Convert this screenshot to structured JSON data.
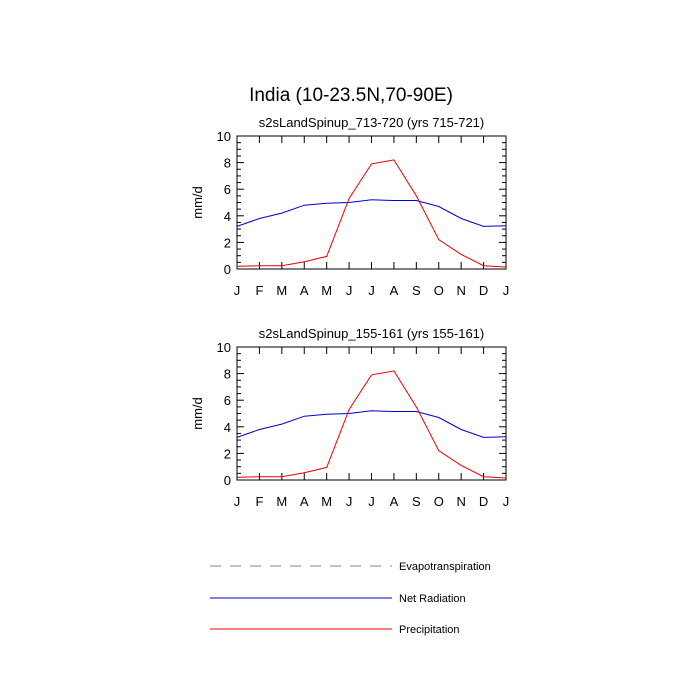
{
  "title": "India (10-23.5N,70-90E)",
  "colors": {
    "evapotranspiration": "#a0a0a0",
    "net_radiation": "#0000d0",
    "precipitation": "#ee0000",
    "axis": "#000000"
  },
  "chart_data": [
    {
      "type": "line",
      "title": "s2sLandSpinup_713-720 (yrs 715-721)",
      "xlabel": "",
      "ylabel": "mm/d",
      "ylim": [
        0,
        10
      ],
      "yticks": [
        0,
        2,
        4,
        6,
        8,
        10
      ],
      "categories": [
        "J",
        "F",
        "M",
        "A",
        "M",
        "J",
        "J",
        "A",
        "S",
        "O",
        "N",
        "D",
        "J"
      ],
      "series": [
        {
          "name": "Net Radiation",
          "values": [
            3.2,
            3.8,
            4.2,
            4.8,
            4.95,
            5.0,
            5.2,
            5.15,
            5.15,
            4.7,
            3.8,
            3.2,
            3.25
          ]
        },
        {
          "name": "Precipitation",
          "values": [
            0.2,
            0.25,
            0.25,
            0.55,
            0.95,
            5.3,
            7.9,
            8.2,
            5.5,
            2.2,
            1.1,
            0.25,
            0.15
          ]
        }
      ]
    },
    {
      "type": "line",
      "title": "s2sLandSpinup_155-161 (yrs 155-161)",
      "xlabel": "",
      "ylabel": "mm/d",
      "ylim": [
        0,
        10
      ],
      "yticks": [
        0,
        2,
        4,
        6,
        8,
        10
      ],
      "categories": [
        "J",
        "F",
        "M",
        "A",
        "M",
        "J",
        "J",
        "A",
        "S",
        "O",
        "N",
        "D",
        "J"
      ],
      "series": [
        {
          "name": "Net Radiation",
          "values": [
            3.2,
            3.8,
            4.2,
            4.8,
            4.95,
            5.0,
            5.2,
            5.15,
            5.15,
            4.7,
            3.8,
            3.2,
            3.25
          ]
        },
        {
          "name": "Precipitation",
          "values": [
            0.2,
            0.25,
            0.25,
            0.55,
            0.95,
            5.3,
            7.9,
            8.2,
            5.5,
            2.2,
            1.1,
            0.25,
            0.15
          ]
        }
      ]
    }
  ],
  "legend": [
    {
      "label": "Evapotranspiration",
      "style": "dashed",
      "color_key": "evapotranspiration"
    },
    {
      "label": "Net Radiation",
      "style": "solid",
      "color_key": "net_radiation"
    },
    {
      "label": "Precipitation",
      "style": "solid",
      "color_key": "precipitation"
    }
  ]
}
